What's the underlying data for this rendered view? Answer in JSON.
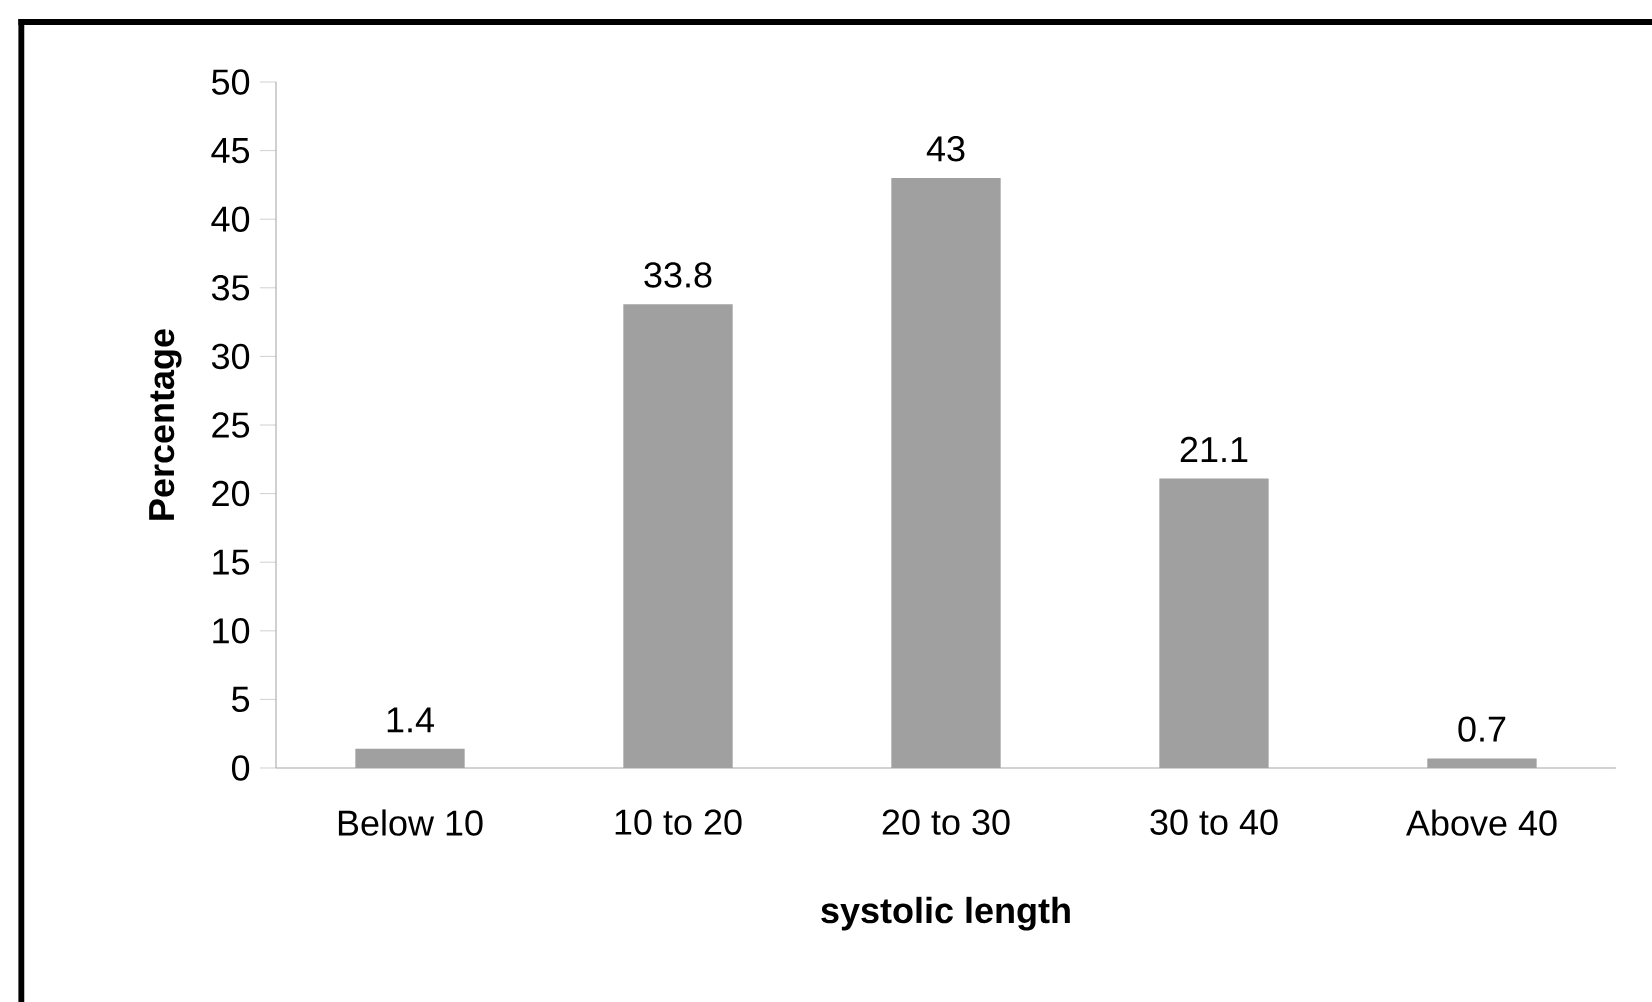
{
  "chart_data": {
    "type": "bar",
    "xlabel": "systolic length",
    "ylabel": "Percentage",
    "categories": [
      "Below 10",
      "10 to 20",
      "20 to 30",
      "30 to 40",
      "Above 40"
    ],
    "values": [
      1.4,
      33.8,
      43,
      21.1,
      0.7
    ],
    "color": "#a0a0a0",
    "ylim": [
      0,
      50
    ],
    "yticks": [
      0,
      5,
      10,
      15,
      20,
      25,
      30,
      35,
      40,
      45,
      50
    ],
    "data_labels": true
  }
}
